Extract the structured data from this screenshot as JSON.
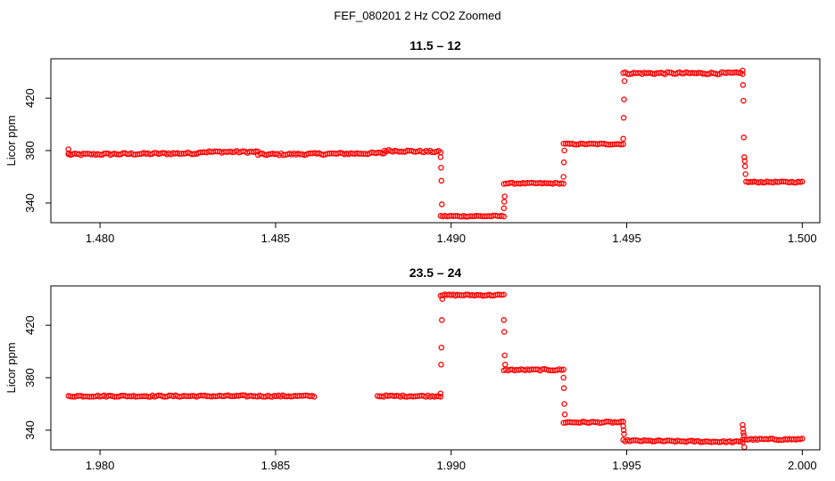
{
  "figure": {
    "title": "FEF_080201  2 Hz CO2 Zoomed"
  },
  "colors": {
    "points": "#ff0000",
    "axes": "#000000",
    "background": "#ffffff"
  },
  "chart_data": [
    {
      "type": "scatter",
      "title": "11.5 – 12",
      "xlabel": "",
      "ylabel": "Licor ppm",
      "xlim": [
        1.4786,
        1.5005
      ],
      "ylim": [
        325,
        450
      ],
      "xticks": [
        1.48,
        1.485,
        1.49,
        1.495,
        1.5
      ],
      "xtick_labels": [
        "1.480",
        "1.485",
        "1.490",
        "1.495",
        "1.500"
      ],
      "yticks": [
        340,
        380,
        420
      ],
      "ytick_labels": [
        "340",
        "380",
        "420"
      ],
      "grid": false,
      "legend": "none",
      "marker": "open-circle",
      "segments": [
        {
          "x": [
            1.4791,
            1.4828
          ],
          "y": [
            377,
            378
          ],
          "noise": 0.8
        },
        {
          "x": [
            1.4828,
            1.4845
          ],
          "y": [
            379,
            379
          ],
          "noise": 0.8
        },
        {
          "x": [
            1.4845,
            1.4881
          ],
          "y": [
            377,
            378
          ],
          "noise": 0.8
        },
        {
          "x": [
            1.4881,
            1.4897
          ],
          "y": [
            380,
            379
          ],
          "noise": 0.8
        },
        {
          "x": [
            1.4897,
            1.4915
          ],
          "y": [
            330,
            330
          ],
          "noise": 0.5
        },
        {
          "x": [
            1.4915,
            1.4932
          ],
          "y": [
            355,
            355
          ],
          "noise": 0.5
        },
        {
          "x": [
            1.4932,
            1.4949
          ],
          "y": [
            385,
            385
          ],
          "noise": 0.5
        },
        {
          "x": [
            1.4949,
            1.4983
          ],
          "y": [
            439,
            439
          ],
          "noise": 0.8
        },
        {
          "x": [
            1.4984,
            1.5
          ],
          "y": [
            356,
            356
          ],
          "noise": 0.5
        }
      ],
      "transitions": [
        {
          "x": 1.4791,
          "y": [
            381,
            378
          ]
        },
        {
          "x": 1.4897,
          "y": [
            375,
            367,
            357,
            339
          ]
        },
        {
          "x": 1.4915,
          "y": [
            336,
            341,
            345
          ]
        },
        {
          "x": 1.4932,
          "y": [
            360,
            371,
            380
          ]
        },
        {
          "x": 1.4949,
          "y": [
            389,
            405,
            419,
            433
          ]
        },
        {
          "x": 1.4983,
          "y": [
            441,
            430,
            418,
            390,
            375,
            372,
            368,
            362
          ]
        }
      ]
    },
    {
      "type": "scatter",
      "title": "23.5 – 24",
      "xlabel": "",
      "ylabel": "Licor ppm",
      "xlim": [
        1.9786,
        2.0005
      ],
      "ylim": [
        325,
        450
      ],
      "xticks": [
        1.98,
        1.985,
        1.99,
        1.995,
        2.0
      ],
      "xtick_labels": [
        "1.980",
        "1.985",
        "1.990",
        "1.995",
        "2.000"
      ],
      "yticks": [
        340,
        380,
        420
      ],
      "ytick_labels": [
        "340",
        "380",
        "420"
      ],
      "grid": false,
      "legend": "none",
      "marker": "open-circle",
      "segments": [
        {
          "x": [
            1.9791,
            1.9861
          ],
          "y": [
            366,
            366
          ],
          "noise": 0.6
        },
        {
          "x": [
            1.9879,
            1.9897
          ],
          "y": [
            366,
            366
          ],
          "noise": 0.6
        },
        {
          "x": [
            1.9897,
            1.9915
          ],
          "y": [
            443,
            443
          ],
          "noise": 0.6
        },
        {
          "x": [
            1.9915,
            1.9932
          ],
          "y": [
            386,
            386
          ],
          "noise": 0.6
        },
        {
          "x": [
            1.9932,
            1.9949
          ],
          "y": [
            346,
            346
          ],
          "noise": 0.6
        },
        {
          "x": [
            1.9949,
            1.9983
          ],
          "y": [
            332,
            331
          ],
          "noise": 0.6
        },
        {
          "x": [
            1.9983,
            2.0
          ],
          "y": [
            333,
            333
          ],
          "noise": 0.6
        }
      ],
      "transitions": [
        {
          "x": 1.9897,
          "y": [
            368,
            390,
            403,
            424,
            440
          ]
        },
        {
          "x": 1.9915,
          "y": [
            424,
            415,
            397,
            390
          ]
        },
        {
          "x": 1.9932,
          "y": [
            380,
            372,
            360,
            352
          ]
        },
        {
          "x": 1.9949,
          "y": [
            343,
            340,
            337
          ]
        },
        {
          "x": 1.9983,
          "y": [
            344,
            341,
            338,
            336,
            327
          ]
        }
      ]
    }
  ]
}
